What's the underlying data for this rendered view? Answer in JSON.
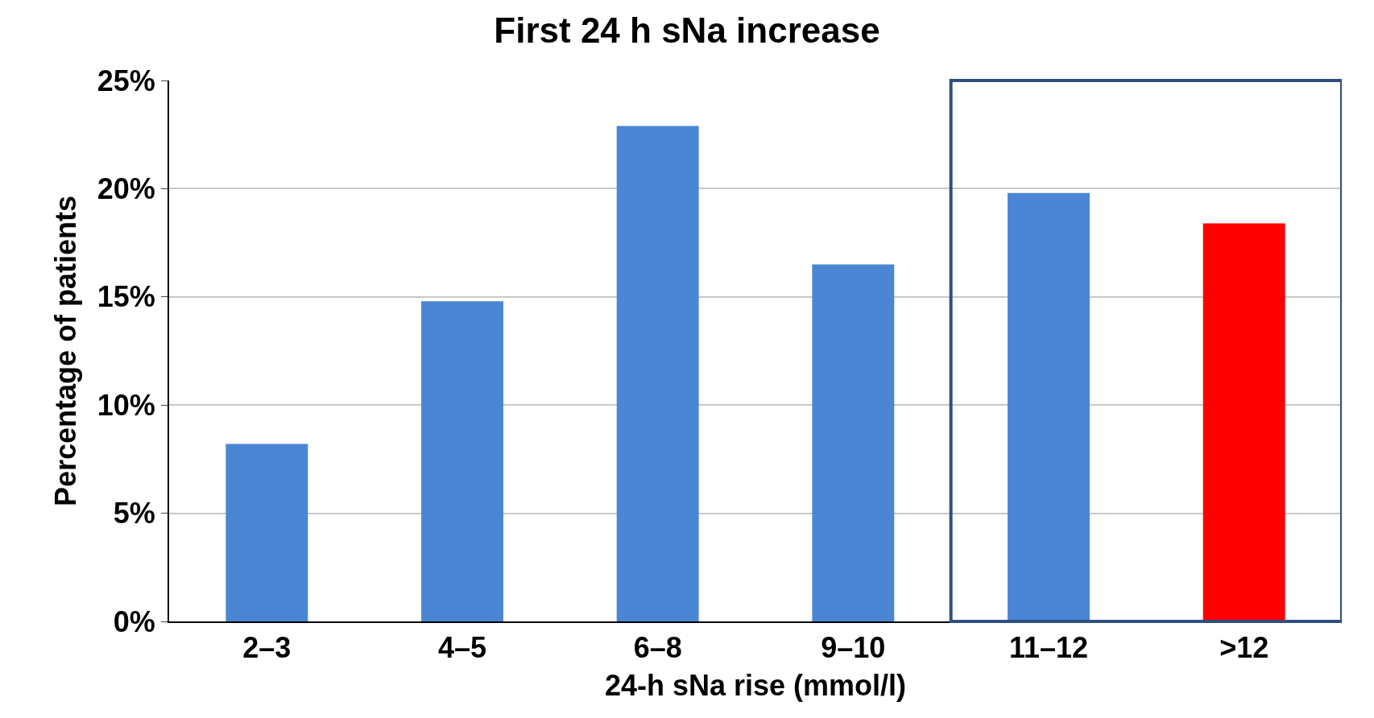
{
  "chart_data": {
    "type": "bar",
    "title": "First 24 h sNa increase",
    "xlabel": "24-h sNa rise (mmol/l)",
    "ylabel": "Percentage of patients",
    "categories": [
      "2–3",
      "4–5",
      "6–8",
      "9–10",
      "11–12",
      ">12"
    ],
    "values": [
      8.2,
      14.8,
      22.9,
      16.5,
      19.8,
      18.4
    ],
    "colors": [
      "#4a86d4",
      "#4a86d4",
      "#4a86d4",
      "#4a86d4",
      "#4a86d4",
      "#ff0000"
    ],
    "ylim": [
      0,
      25
    ],
    "yticks": [
      {
        "value": 0,
        "label": "0%"
      },
      {
        "value": 5,
        "label": "5%"
      },
      {
        "value": 10,
        "label": "10%"
      },
      {
        "value": 15,
        "label": "15%"
      },
      {
        "value": 20,
        "label": "20%"
      },
      {
        "value": 25,
        "label": "25%"
      }
    ],
    "grid": "y",
    "legend": false
  }
}
